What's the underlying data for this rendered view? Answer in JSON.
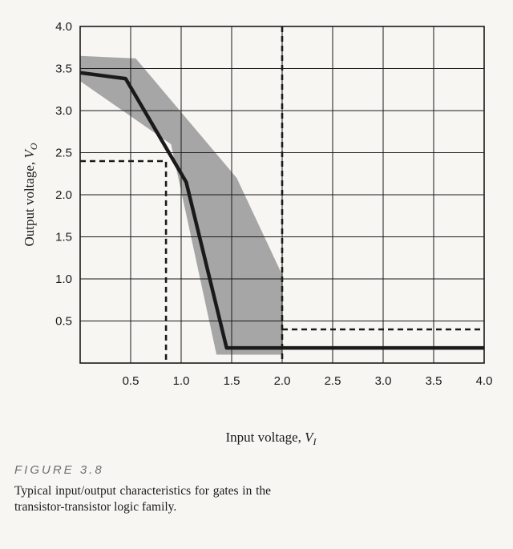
{
  "chart_data": {
    "type": "line",
    "xlabel_main": "Input voltage, ",
    "xlabel_var": "V",
    "xlabel_sub": "I",
    "ylabel_main": "Output voltage, ",
    "ylabel_var": "V",
    "ylabel_sub": "O",
    "xlim": [
      0,
      4.0
    ],
    "ylim": [
      0,
      4.0
    ],
    "grid": true,
    "x_ticks": [
      "0.5",
      "1.0",
      "1.5",
      "2.0",
      "2.5",
      "3.0",
      "3.5",
      "4.0"
    ],
    "y_ticks": [
      "4.0",
      "3.5",
      "3.0",
      "2.5",
      "2.0",
      "1.5",
      "1.0",
      "0.5"
    ],
    "series": [
      {
        "role": "typical transfer curve",
        "color": "#1a1a1a",
        "x": [
          0.0,
          0.45,
          1.05,
          1.45,
          4.0
        ],
        "y": [
          3.45,
          3.38,
          2.15,
          0.18,
          0.18
        ]
      }
    ],
    "band": {
      "role": "spread of characteristics",
      "color": "#a6a6a6",
      "x": [
        0.0,
        0.55,
        1.55,
        2.0,
        2.0,
        1.35,
        0.9,
        0.0
      ],
      "y": [
        3.65,
        3.62,
        2.2,
        1.05,
        0.1,
        0.1,
        2.6,
        3.35
      ]
    },
    "dashed_lines": [
      {
        "role": "V_IL marker",
        "x": [
          0.0,
          0.85,
          0.85
        ],
        "y": [
          2.4,
          2.4,
          0.0
        ]
      },
      {
        "role": "V_IH marker",
        "x": [
          2.0,
          2.0
        ],
        "y": [
          4.0,
          0.0
        ]
      },
      {
        "role": "V_OL marker",
        "x": [
          2.0,
          4.0
        ],
        "y": [
          0.4,
          0.4
        ]
      }
    ]
  },
  "caption": {
    "label": "FIGURE 3.8",
    "text": "Typical input/output characteristics for gates in the transistor-transistor logic family."
  }
}
